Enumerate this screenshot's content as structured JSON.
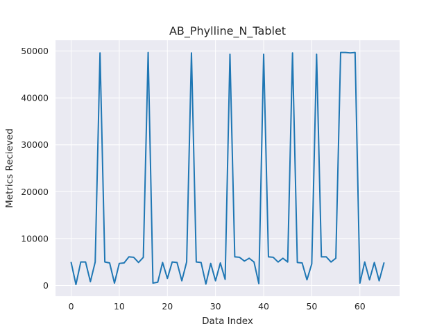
{
  "chart_data": {
    "type": "line",
    "title": "AB_Phylline_N_Tablet",
    "xlabel": "Data Index",
    "ylabel": "Metrics Recieved",
    "xlim": [
      -3.25,
      68.25
    ],
    "ylim": [
      -2300,
      52300
    ],
    "xticks": [
      0,
      10,
      20,
      30,
      40,
      50,
      60
    ],
    "yticks": [
      0,
      10000,
      20000,
      30000,
      40000,
      50000
    ],
    "grid": true,
    "legend": "none",
    "series": [
      {
        "color": "#1f77b4",
        "x": [
          0,
          1,
          2,
          3,
          4,
          5,
          6,
          7,
          8,
          9,
          10,
          11,
          12,
          13,
          14,
          15,
          16,
          17,
          18,
          19,
          20,
          21,
          22,
          23,
          24,
          25,
          26,
          27,
          28,
          29,
          30,
          31,
          32,
          33,
          34,
          35,
          36,
          37,
          38,
          39,
          40,
          41,
          42,
          43,
          44,
          45,
          46,
          47,
          48,
          49,
          50,
          51,
          52,
          53,
          54,
          55,
          56,
          57,
          58,
          59,
          60,
          61,
          62,
          63,
          64,
          65
        ],
        "values": [
          4900,
          200,
          5000,
          5000,
          800,
          5000,
          49600,
          5000,
          4800,
          500,
          4700,
          4800,
          6100,
          6000,
          4900,
          6000,
          49700,
          500,
          700,
          4900,
          1500,
          5000,
          4900,
          1000,
          5000,
          49600,
          5000,
          4900,
          300,
          4700,
          1000,
          4800,
          1300,
          49300,
          6100,
          6000,
          5200,
          5800,
          5000,
          400,
          49300,
          6100,
          6000,
          5000,
          5800,
          5000,
          49600,
          4900,
          4800,
          1200,
          4600,
          49300,
          6100,
          6100,
          5000,
          5800,
          49700,
          49700,
          49600,
          49700,
          500,
          5000,
          1200,
          4900,
          1000,
          4800
        ]
      }
    ]
  }
}
